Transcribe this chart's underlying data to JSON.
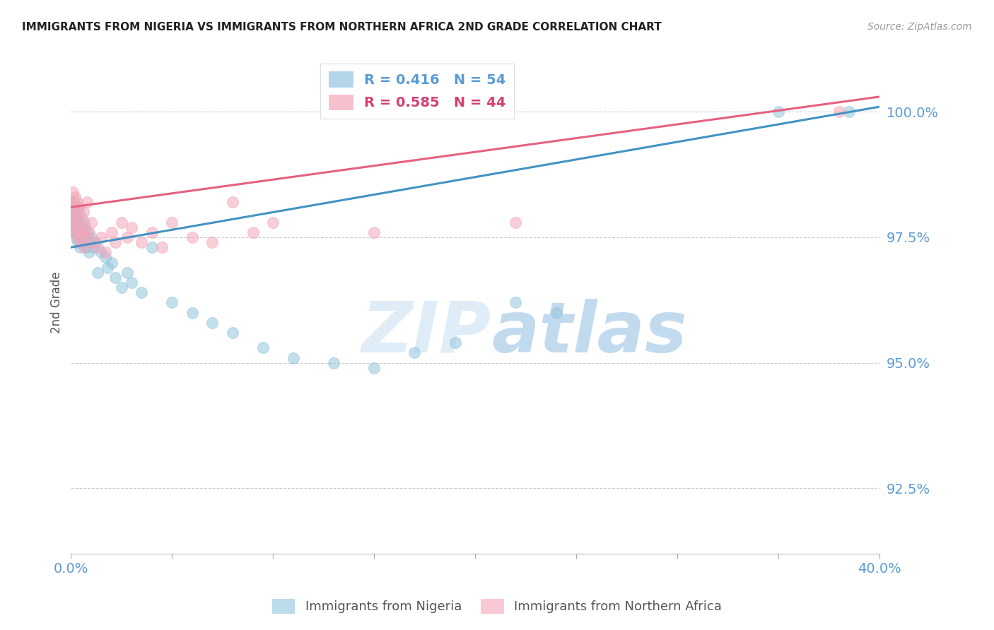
{
  "title": "IMMIGRANTS FROM NIGERIA VS IMMIGRANTS FROM NORTHERN AFRICA 2ND GRADE CORRELATION CHART",
  "source": "Source: ZipAtlas.com",
  "ylabel": "2nd Grade",
  "yticks": [
    92.5,
    95.0,
    97.5,
    100.0
  ],
  "ytick_labels": [
    "92.5%",
    "95.0%",
    "97.5%",
    "100.0%"
  ],
  "xlim": [
    0.0,
    40.0
  ],
  "ylim": [
    91.2,
    101.2
  ],
  "legend_blue_r": "0.416",
  "legend_blue_n": "54",
  "legend_pink_r": "0.585",
  "legend_pink_n": "44",
  "legend_label_blue": "Immigrants from Nigeria",
  "legend_label_pink": "Immigrants from Northern Africa",
  "blue_color": "#92c5de",
  "pink_color": "#f4a6b8",
  "blue_line_color": "#4393c3",
  "pink_line_color": "#e86080",
  "watermark_zip": "ZIP",
  "watermark_atlas": "atlas",
  "title_color": "#222222",
  "axis_label_color": "#5b9bd5",
  "grid_color": "#cccccc",
  "nigeria_x": [
    0.05,
    0.08,
    0.1,
    0.12,
    0.15,
    0.18,
    0.2,
    0.22,
    0.25,
    0.28,
    0.3,
    0.32,
    0.35,
    0.38,
    0.4,
    0.42,
    0.45,
    0.5,
    0.55,
    0.6,
    0.65,
    0.7,
    0.75,
    0.8,
    0.85,
    0.9,
    1.0,
    1.1,
    1.2,
    1.3,
    1.5,
    1.7,
    1.8,
    2.0,
    2.2,
    2.5,
    2.8,
    3.0,
    3.5,
    4.0,
    5.0,
    6.0,
    7.0,
    8.0,
    9.5,
    11.0,
    13.0,
    15.0,
    17.0,
    19.0,
    22.0,
    24.0,
    35.0,
    38.5
  ],
  "nigeria_y": [
    97.8,
    98.1,
    97.9,
    98.2,
    97.7,
    97.6,
    98.0,
    97.8,
    97.5,
    97.9,
    97.6,
    98.1,
    97.4,
    97.8,
    97.5,
    98.0,
    97.3,
    97.7,
    97.6,
    97.4,
    97.8,
    97.5,
    97.3,
    97.6,
    97.4,
    97.2,
    97.5,
    97.3,
    97.4,
    96.8,
    97.2,
    97.1,
    96.9,
    97.0,
    96.7,
    96.5,
    96.8,
    96.6,
    96.4,
    97.3,
    96.2,
    96.0,
    95.8,
    95.6,
    95.3,
    95.1,
    95.0,
    94.9,
    95.2,
    95.4,
    96.2,
    96.0,
    100.0,
    100.0
  ],
  "n_africa_x": [
    0.05,
    0.08,
    0.1,
    0.15,
    0.18,
    0.2,
    0.22,
    0.25,
    0.28,
    0.3,
    0.35,
    0.38,
    0.4,
    0.45,
    0.5,
    0.55,
    0.6,
    0.65,
    0.7,
    0.75,
    0.8,
    0.9,
    1.0,
    1.1,
    1.3,
    1.5,
    1.7,
    2.0,
    2.2,
    2.5,
    2.8,
    3.0,
    3.5,
    4.0,
    4.5,
    5.0,
    6.0,
    7.0,
    8.0,
    9.0,
    10.0,
    15.0,
    22.0,
    38.0
  ],
  "n_africa_y": [
    98.2,
    97.9,
    98.4,
    98.1,
    97.8,
    98.3,
    97.6,
    98.0,
    97.7,
    98.2,
    97.5,
    98.1,
    97.8,
    97.4,
    97.9,
    97.6,
    98.0,
    97.3,
    97.7,
    97.5,
    98.2,
    97.6,
    97.8,
    97.4,
    97.3,
    97.5,
    97.2,
    97.6,
    97.4,
    97.8,
    97.5,
    97.7,
    97.4,
    97.6,
    97.3,
    97.8,
    97.5,
    97.4,
    98.2,
    97.6,
    97.8,
    97.6,
    97.8,
    100.0
  ],
  "blue_regline_x0": 0.0,
  "blue_regline_y0": 97.3,
  "blue_regline_x1": 40.0,
  "blue_regline_y1": 100.1,
  "pink_regline_x0": 0.0,
  "pink_regline_y0": 98.1,
  "pink_regline_x1": 40.0,
  "pink_regline_y1": 100.3
}
